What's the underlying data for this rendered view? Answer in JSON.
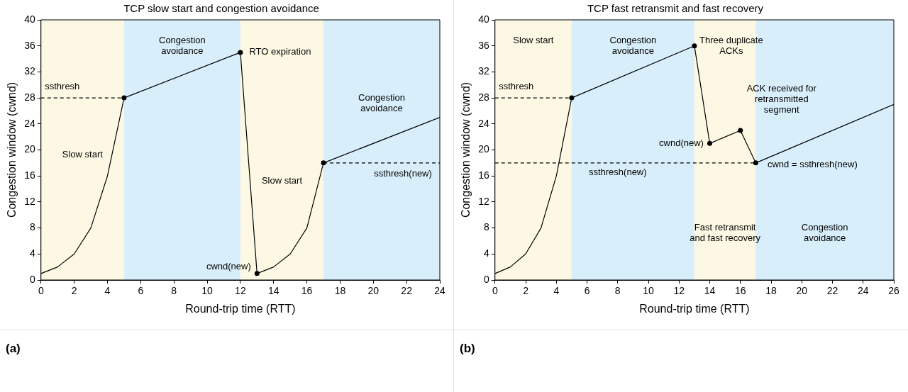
{
  "chart_data": [
    {
      "type": "line",
      "title": "TCP slow start and congestion avoidance",
      "xlabel": "Round-trip time (RTT)",
      "ylabel": "Congestion window (cwnd)",
      "xlim": [
        0,
        24
      ],
      "xticks": [
        0,
        2,
        4,
        6,
        8,
        10,
        12,
        14,
        16,
        18,
        20,
        22,
        24
      ],
      "ylim": [
        0,
        40
      ],
      "yticks": [
        0,
        4,
        8,
        12,
        16,
        20,
        24,
        28,
        32,
        36,
        40
      ],
      "series": [
        {
          "type": "line",
          "color": "#000000",
          "marker": "none",
          "x": [
            0,
            1,
            2,
            3,
            4,
            5,
            12,
            13,
            14,
            15,
            16,
            17,
            24
          ],
          "values": [
            1,
            2,
            4,
            8,
            16,
            28,
            35,
            1,
            2,
            4,
            8,
            18,
            25
          ]
        },
        {
          "type": "scatter",
          "color": "#000000",
          "marker": "circle",
          "x": [
            5,
            12,
            13,
            17
          ],
          "values": [
            28,
            35,
            1,
            18
          ]
        },
        {
          "type": "line",
          "color": "#000000",
          "marker": "none",
          "line_style": "dashed",
          "x": [
            0,
            5
          ],
          "values": [
            28,
            28
          ]
        },
        {
          "type": "line",
          "color": "#000000",
          "marker": "none",
          "line_style": "dashed",
          "x": [
            17,
            24
          ],
          "values": [
            18,
            18
          ]
        }
      ],
      "bands": [
        {
          "axis": "x",
          "from": 0,
          "to": 5,
          "color": "#fdf8e4",
          "label": "Slow start"
        },
        {
          "axis": "x",
          "from": 5,
          "to": 12,
          "color": "#d8eefb",
          "label": "Congestion avoidance"
        },
        {
          "axis": "x",
          "from": 12,
          "to": 17,
          "color": "#fdf8e4",
          "label": "Slow start"
        },
        {
          "axis": "x",
          "from": 17,
          "to": 24,
          "color": "#d8eefb",
          "label": "Congestion avoidance"
        }
      ],
      "annotations": [
        {
          "text": "RTO expiration",
          "x": 12,
          "y": 35
        },
        {
          "text": "cwnd(new)",
          "x": 13,
          "y": 1
        },
        {
          "text": "ssthresh",
          "x": 0,
          "y": 28
        },
        {
          "text": "ssthresh(new)",
          "x": 24,
          "y": 18
        },
        "(a)"
      ]
    },
    {
      "type": "line",
      "title": "TCP fast retransmit and fast recovery",
      "xlabel": "Round-trip time (RTT)",
      "ylabel": "Congestion window (cwnd)",
      "xlim": [
        0,
        26
      ],
      "xticks": [
        0,
        2,
        4,
        6,
        8,
        10,
        12,
        14,
        16,
        18,
        20,
        22,
        24,
        26
      ],
      "ylim": [
        0,
        40
      ],
      "yticks": [
        0,
        4,
        8,
        12,
        16,
        20,
        24,
        28,
        32,
        36,
        40
      ],
      "series": [
        {
          "type": "line",
          "color": "#000000",
          "marker": "none",
          "x": [
            0,
            1,
            2,
            3,
            4,
            5,
            13,
            14,
            16,
            17,
            26
          ],
          "values": [
            1,
            2,
            4,
            8,
            16,
            28,
            36,
            21,
            23,
            18,
            27
          ]
        },
        {
          "type": "scatter",
          "color": "#000000",
          "marker": "circle",
          "x": [
            5,
            13,
            14,
            16,
            17
          ],
          "values": [
            28,
            36,
            21,
            23,
            18
          ]
        },
        {
          "type": "line",
          "color": "#000000",
          "marker": "none",
          "line_style": "dashed",
          "x": [
            0,
            5
          ],
          "values": [
            28,
            28
          ]
        },
        {
          "type": "line",
          "color": "#000000",
          "marker": "none",
          "line_style": "dashed",
          "x": [
            0,
            17
          ],
          "values": [
            18,
            18
          ]
        }
      ],
      "bands": [
        {
          "axis": "x",
          "from": 0,
          "to": 5,
          "color": "#fdf8e4",
          "label": "Slow start"
        },
        {
          "axis": "x",
          "from": 5,
          "to": 13,
          "color": "#d8eefb",
          "label": "Congestion avoidance"
        },
        {
          "axis": "x",
          "from": 13,
          "to": 17,
          "color": "#fdf8e4",
          "label": "Fast retransmit and fast recovery"
        },
        {
          "axis": "x",
          "from": 17,
          "to": 26,
          "color": "#d8eefb",
          "label": "Congestion avoidance"
        }
      ],
      "annotations": [
        {
          "text": "Three duplicate ACKs",
          "x": 13,
          "y": 36
        },
        {
          "text": "cwnd(new)",
          "x": 14,
          "y": 21
        },
        {
          "text": "ACK received for retransmitted segment",
          "x": 16,
          "y": 23
        },
        {
          "text": "cwnd = ssthresh(new)",
          "x": 17,
          "y": 18
        },
        {
          "text": "ssthresh",
          "x": 0,
          "y": 28
        },
        {
          "text": "ssthresh(new)",
          "x": 8,
          "y": 18
        },
        "(b)"
      ]
    }
  ]
}
